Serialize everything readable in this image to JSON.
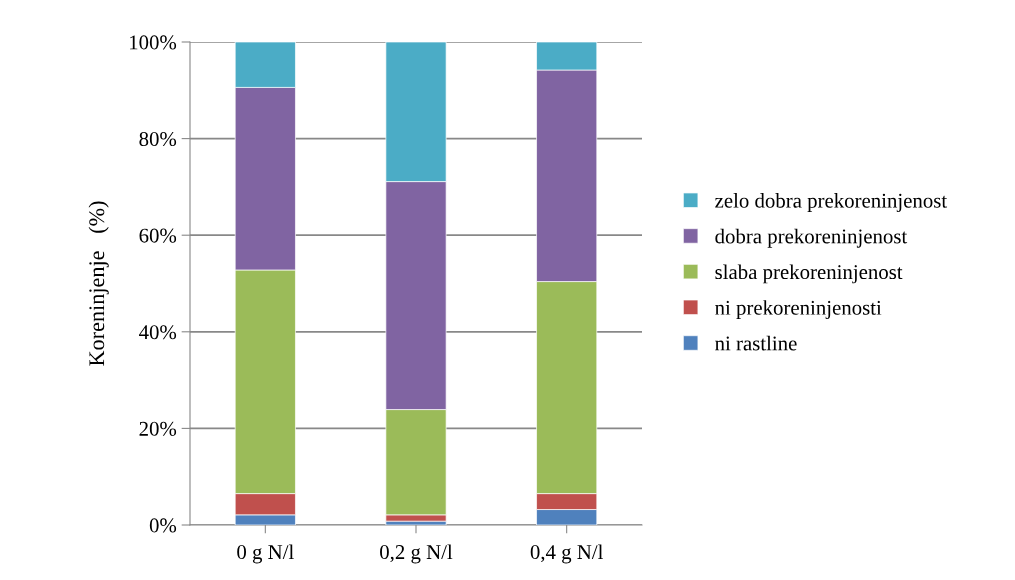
{
  "chart_data": {
    "type": "bar",
    "stacked": true,
    "ylabel": "Koreninjenje   (%)",
    "categories": [
      "0 g N/l",
      "0,2 g N/l",
      "0,4 g N/l"
    ],
    "series": [
      {
        "name": "ni rastline",
        "color": "#4f81bd",
        "values": [
          2.1,
          0.8,
          3.2
        ]
      },
      {
        "name": "ni prekoreninjenosti",
        "color": "#c0504d",
        "values": [
          4.4,
          1.3,
          3.3
        ]
      },
      {
        "name": "slaba prekoreninjenost",
        "color": "#9bbb59",
        "values": [
          46.3,
          21.8,
          43.9
        ]
      },
      {
        "name": "dobra prekoreninjenost",
        "color": "#8064a2",
        "values": [
          37.8,
          47.2,
          43.8
        ]
      },
      {
        "name": "zelo dobra prekoreninjenost",
        "color": "#4bacc6",
        "values": [
          9.4,
          28.9,
          5.8
        ]
      }
    ],
    "ylim": [
      0,
      100
    ],
    "yticks": [
      {
        "value": 0,
        "label": "0%"
      },
      {
        "value": 20,
        "label": "20%"
      },
      {
        "value": 40,
        "label": "40%"
      },
      {
        "value": 60,
        "label": "60%"
      },
      {
        "value": 80,
        "label": "80%"
      },
      {
        "value": 100,
        "label": "100%"
      }
    ],
    "grid": "y",
    "legend": "right"
  }
}
